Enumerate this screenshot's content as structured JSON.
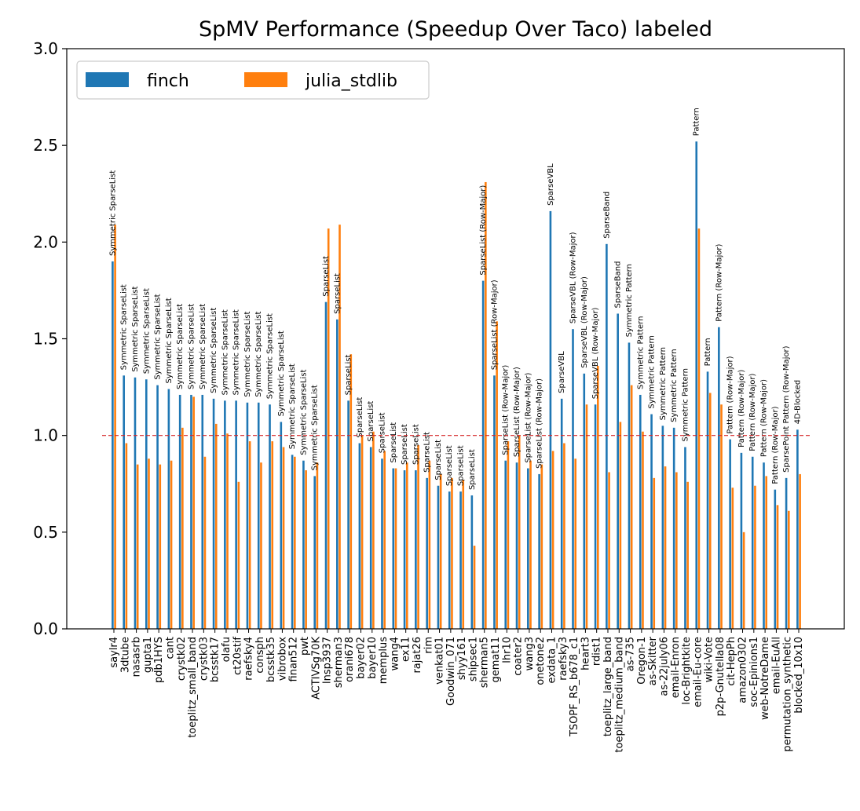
{
  "chart_data": {
    "type": "bar",
    "title": "SpMV Performance (Speedup Over Taco) labeled",
    "xlabel": "",
    "ylabel": "",
    "ylim": [
      0,
      3.0
    ],
    "yticks": [
      0.0,
      0.5,
      1.0,
      1.5,
      2.0,
      2.5,
      3.0
    ],
    "ytick_labels": [
      "0.0",
      "0.5",
      "1.0",
      "1.5",
      "2.0",
      "2.5",
      "3.0"
    ],
    "reference_line": 1.0,
    "legend": {
      "placement": "top-left",
      "columns": 2
    },
    "grid": false,
    "colors": {
      "finch": "#1f77b4",
      "julia_stdlib": "#ff7f0e",
      "reference_line": "#d62728"
    },
    "categories": [
      "saylr4",
      "3dtube",
      "nasasrb",
      "gupta1",
      "pdb1HYS",
      "cant",
      "crystk02",
      "toeplitz_small_band",
      "crystk03",
      "bcsstk17",
      "olafu",
      "ct20stif",
      "raefsky4",
      "consph",
      "bcsstk35",
      "vibrobox",
      "finan512",
      "pwt",
      "ACTIVSg70K",
      "lnsp3937",
      "sherman3",
      "orani678",
      "bayer02",
      "bayer10",
      "memplus",
      "wang4",
      "ex11",
      "rajat26",
      "rim",
      "venkat01",
      "Goodwin_071",
      "shyy161",
      "shipsec1",
      "sherman5",
      "gemat11",
      "lhr10",
      "coater2",
      "wang3",
      "onetone2",
      "exdata_1",
      "raefsky3",
      "TSOPF_RS_b678_c1",
      "heart3",
      "rdist1",
      "toeplitz_large_band",
      "toeplitz_medium_band",
      "as-735",
      "Oregon-1",
      "as-Skitter",
      "as-22july06",
      "email-Enron",
      "loc-Brightkite",
      "email-Eu-core",
      "wiki-Vote",
      "p2p-Gnutella08",
      "cit-HepPh",
      "amazon0302",
      "soc-Epinions1",
      "web-NotreDame",
      "email-EuAll",
      "permutation_synthetic",
      "blocked_10x10"
    ],
    "series": [
      {
        "name": "finch",
        "values": [
          1.9,
          1.31,
          1.3,
          1.29,
          1.26,
          1.24,
          1.21,
          1.21,
          1.21,
          1.19,
          1.18,
          1.18,
          1.17,
          1.17,
          1.16,
          1.07,
          0.9,
          0.87,
          0.79,
          1.69,
          1.6,
          1.18,
          0.96,
          0.94,
          0.88,
          0.83,
          0.82,
          0.82,
          0.78,
          0.74,
          0.71,
          0.71,
          0.69,
          1.8,
          1.31,
          0.87,
          0.86,
          0.83,
          0.8,
          2.16,
          1.19,
          1.55,
          1.32,
          1.16,
          1.99,
          1.63,
          1.48,
          1.21,
          1.11,
          1.05,
          1.04,
          0.94,
          2.52,
          1.33,
          1.56,
          0.98,
          0.91,
          0.89,
          0.86,
          0.72,
          0.78,
          1.03
        ]
      },
      {
        "name": "julia_stdlib",
        "values": [
          2.09,
          0.96,
          0.85,
          0.88,
          0.85,
          0.87,
          1.04,
          1.2,
          0.89,
          1.06,
          1.01,
          0.76,
          0.97,
          0.86,
          0.97,
          0.94,
          0.89,
          0.82,
          0.86,
          2.07,
          2.09,
          1.42,
          1.0,
          1.02,
          0.92,
          0.83,
          0.86,
          0.95,
          0.87,
          0.8,
          0.78,
          0.77,
          0.43,
          2.31,
          1.59,
          0.97,
          1.0,
          0.87,
          0.85,
          0.92,
          0.96,
          0.88,
          1.16,
          1.36,
          0.81,
          1.07,
          1.26,
          1.02,
          0.78,
          0.84,
          0.81,
          0.76,
          2.07,
          1.22,
          1.16,
          0.73,
          0.5,
          0.74,
          0.79,
          0.64,
          0.61,
          0.8
        ]
      }
    ],
    "bar_labels": [
      "Symmetric SparseList",
      "Symmetric SparseList",
      "Symmetric SparseList",
      "Symmetric SparseList",
      "Symmetric SparseList",
      "Symmetric SparseList",
      "Symmetric SparseList",
      "Symmetric SparseList",
      "Symmetric SparseList",
      "Symmetric SparseList",
      "Symmetric SparseList",
      "Symmetric SparseList",
      "Symmetric SparseList",
      "Symmetric SparseList",
      "Symmetric SparseList",
      "Symmetric SparseList",
      "Symmetric SparseList",
      "Symmetric SparseList",
      "Symmetric SparseList",
      "SparseList",
      "SparseList",
      "SparseList",
      "SparseList",
      "SparseList",
      "SparseList",
      "SparseList",
      "SparseList",
      "SparseList",
      "SparseList",
      "SparseList",
      "SparseList",
      "SparseList",
      "SparseList",
      "SparseList (Row-Major)",
      "SparseList (Row-Major)",
      "SparseList (Row-Major)",
      "SparseList (Row-Major)",
      "SparseList (Row-Major)",
      "SparseList (Row-Major)",
      "SparseVBL",
      "SparseVBL",
      "SparseVBL (Row-Major)",
      "SparseVBL (Row-Major)",
      "SparseVBL (Row-Major)",
      "SparseBand",
      "SparseBand",
      "Symmetric Pattern",
      "Symmetric Pattern",
      "Symmetric Pattern",
      "Symmetric Pattern",
      "Symmetric Pattern",
      "Symmetric Pattern",
      "Pattern",
      "Pattern",
      "Pattern (Row-Major)",
      "Pattern (Row-Major)",
      "Pattern (Row-Major)",
      "Pattern (Row-Major)",
      "Pattern (Row-Major)",
      "Pattern (Row-Major)",
      "SparsePoint Pattern (Row-Major)",
      "4D-Blocked"
    ]
  }
}
